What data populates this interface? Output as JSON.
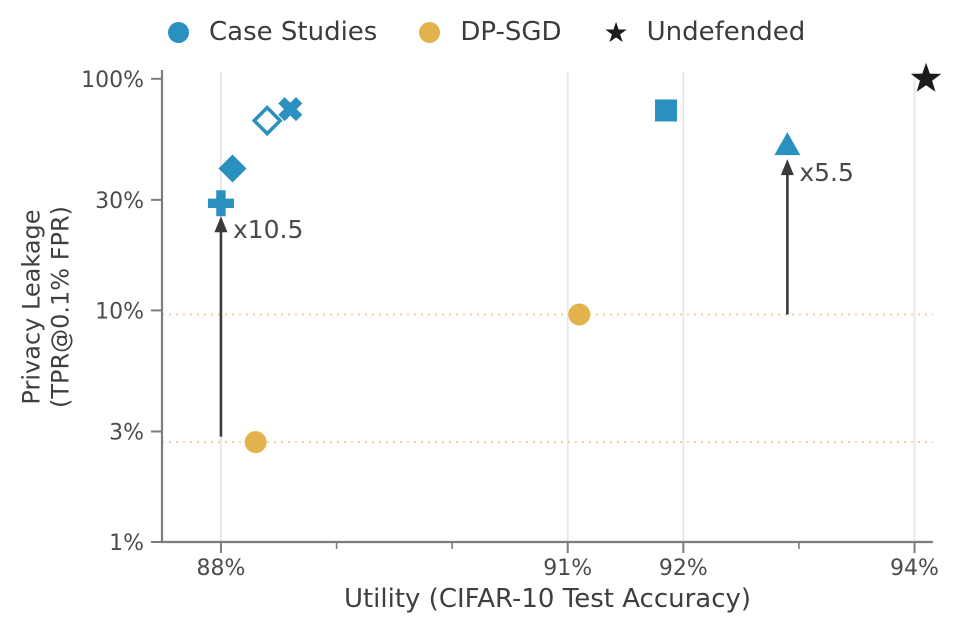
{
  "legend": {
    "items": [
      {
        "label": "Case Studies",
        "marker": "circle",
        "color": "#2a90c0"
      },
      {
        "label": "DP-SGD",
        "marker": "circle",
        "color": "#e2b34c"
      },
      {
        "label": "Undefended",
        "marker": "star",
        "color": "#1c1c1c"
      }
    ]
  },
  "chart_data": {
    "type": "scatter",
    "title": "",
    "xlabel": "Utility (CIFAR-10 Test Accuracy)",
    "ylabel": "Privacy Leakage (TPR@0.1% FPR)",
    "ylabel_lines": [
      "Privacy Leakage",
      "(TPR@0.1% FPR)"
    ],
    "x_axis": {
      "scale": "linear",
      "unit": "%",
      "range": [
        87.49,
        94.16
      ],
      "ticks": [
        {
          "value": 88,
          "label": "88%"
        },
        {
          "value": 91,
          "label": "91%"
        },
        {
          "value": 92,
          "label": "92%"
        },
        {
          "value": 94,
          "label": "94%"
        }
      ],
      "minor_ticks": [
        89,
        90,
        93
      ],
      "gridlines": [
        88,
        91,
        92,
        94
      ]
    },
    "y_axis": {
      "scale": "log",
      "unit": "%",
      "range": [
        1,
        107
      ],
      "ticks": [
        {
          "value": 1,
          "label": "1%"
        },
        {
          "value": 3,
          "label": "3%"
        },
        {
          "value": 10,
          "label": "10%"
        },
        {
          "value": 30,
          "label": "30%"
        },
        {
          "value": 100,
          "label": "100%"
        }
      ]
    },
    "series": [
      {
        "name": "Case Studies",
        "color": "#2a90c0",
        "points": [
          {
            "x": 88.0,
            "y": 29,
            "marker": "plus_filled"
          },
          {
            "x": 88.1,
            "y": 41,
            "marker": "diamond_filled"
          },
          {
            "x": 88.4,
            "y": 66,
            "marker": "diamond_open"
          },
          {
            "x": 88.6,
            "y": 74,
            "marker": "x_filled"
          },
          {
            "x": 91.85,
            "y": 73,
            "marker": "square"
          },
          {
            "x": 92.9,
            "y": 52,
            "marker": "triangle_up"
          }
        ]
      },
      {
        "name": "DP-SGD",
        "color": "#e2b34c",
        "points": [
          {
            "x": 88.3,
            "y": 2.7,
            "marker": "circle"
          },
          {
            "x": 91.1,
            "y": 9.6,
            "marker": "circle"
          }
        ]
      },
      {
        "name": "Undefended",
        "color": "#1c1c1c",
        "points": [
          {
            "x": 94.1,
            "y": 100,
            "marker": "star"
          }
        ]
      }
    ],
    "reference_lines": [
      {
        "y": 2.7,
        "style": "dotted"
      },
      {
        "y": 9.6,
        "style": "dotted"
      }
    ],
    "annotations": [
      {
        "type": "arrow",
        "x": 88.0,
        "y_from": 2.85,
        "y_to": 25.5,
        "label": "x10.5"
      },
      {
        "type": "arrow",
        "x": 92.9,
        "y_from": 9.6,
        "y_to": 45,
        "label": "x5.5"
      }
    ],
    "colors": {
      "case_studies": "#2a90c0",
      "dp_sgd": "#e2b34c",
      "undefended": "#1c1c1c",
      "arrow": "#3b3b3b",
      "grid": "#e9e9e9",
      "spine": "#7d7d7d",
      "tick_label": "#4c4c4c",
      "axis_label": "#3f3f3f",
      "annotation_label": "#4a4a4a",
      "reference_line": "#ecd09c"
    },
    "legend_position": "top"
  }
}
